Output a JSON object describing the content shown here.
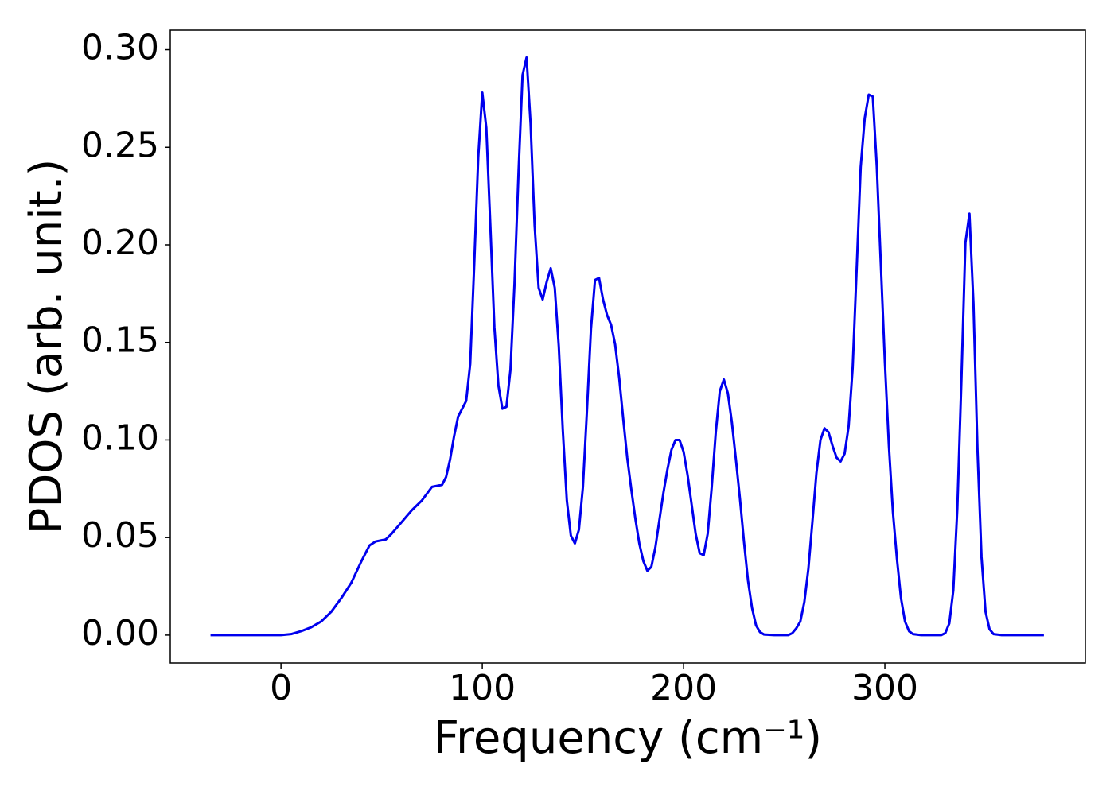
{
  "chart_data": {
    "type": "line",
    "xlabel": "Frequency (cm⁻¹)",
    "ylabel": "PDOS (arb. unit.)",
    "x": [
      -35,
      0,
      5,
      10,
      15,
      20,
      25,
      30,
      35,
      40,
      44,
      47,
      52,
      55,
      60,
      65,
      70,
      75,
      80,
      82,
      84,
      86,
      88,
      90,
      92,
      94,
      96,
      98,
      100,
      102,
      104,
      106,
      108,
      110,
      112,
      114,
      116,
      118,
      120,
      122,
      124,
      126,
      128,
      130,
      132,
      134,
      136,
      138,
      140,
      142,
      144,
      146,
      148,
      150,
      152,
      154,
      156,
      158,
      160,
      162,
      164,
      166,
      168,
      170,
      172,
      174,
      176,
      178,
      180,
      182,
      184,
      186,
      188,
      190,
      192,
      194,
      196,
      198,
      200,
      202,
      204,
      206,
      208,
      210,
      212,
      214,
      216,
      218,
      220,
      222,
      224,
      226,
      228,
      230,
      232,
      234,
      236,
      238,
      240,
      245,
      252,
      254,
      256,
      258,
      260,
      262,
      264,
      266,
      268,
      270,
      272,
      274,
      276,
      278,
      280,
      282,
      284,
      286,
      288,
      290,
      292,
      294,
      296,
      298,
      300,
      302,
      304,
      306,
      308,
      310,
      312,
      314,
      318,
      328,
      330,
      332,
      334,
      336,
      338,
      340,
      342,
      344,
      346,
      348,
      350,
      352,
      354,
      358,
      379
    ],
    "series": [
      {
        "name": "PDOS",
        "color": "#0000ee",
        "values": [
          0,
          0,
          0.0005,
          0.002,
          0.004,
          0.007,
          0.012,
          0.019,
          0.027,
          0.038,
          0.046,
          0.048,
          0.049,
          0.052,
          0.058,
          0.064,
          0.069,
          0.076,
          0.077,
          0.081,
          0.09,
          0.102,
          0.112,
          0.116,
          0.12,
          0.139,
          0.19,
          0.245,
          0.278,
          0.26,
          0.21,
          0.158,
          0.128,
          0.116,
          0.117,
          0.136,
          0.18,
          0.237,
          0.287,
          0.296,
          0.262,
          0.21,
          0.178,
          0.172,
          0.181,
          0.188,
          0.178,
          0.148,
          0.105,
          0.069,
          0.051,
          0.047,
          0.054,
          0.076,
          0.115,
          0.157,
          0.182,
          0.183,
          0.172,
          0.164,
          0.159,
          0.149,
          0.132,
          0.111,
          0.091,
          0.075,
          0.06,
          0.047,
          0.038,
          0.033,
          0.035,
          0.045,
          0.059,
          0.073,
          0.085,
          0.095,
          0.1,
          0.1,
          0.094,
          0.082,
          0.067,
          0.052,
          0.042,
          0.041,
          0.052,
          0.076,
          0.104,
          0.125,
          0.131,
          0.124,
          0.109,
          0.09,
          0.07,
          0.048,
          0.028,
          0.014,
          0.005,
          0.0015,
          0.0003,
          0,
          0,
          0.001,
          0.0035,
          0.007,
          0.017,
          0.034,
          0.058,
          0.083,
          0.1,
          0.106,
          0.104,
          0.097,
          0.091,
          0.089,
          0.093,
          0.107,
          0.137,
          0.188,
          0.24,
          0.265,
          0.277,
          0.276,
          0.24,
          0.19,
          0.14,
          0.097,
          0.063,
          0.039,
          0.019,
          0.007,
          0.002,
          0.0005,
          0,
          0,
          0.001,
          0.006,
          0.023,
          0.065,
          0.13,
          0.201,
          0.216,
          0.17,
          0.095,
          0.04,
          0.012,
          0.003,
          0.0005,
          0,
          0
        ]
      }
    ],
    "xlim": [
      -55,
      399.6
    ],
    "ylim": [
      -0.0143,
      0.31
    ],
    "xticks": [
      0,
      100,
      200,
      300
    ],
    "yticks": [
      {
        "value": 0,
        "label": "0.00"
      },
      {
        "value": 0.05,
        "label": "0.05"
      },
      {
        "value": 0.1,
        "label": "0.10"
      },
      {
        "value": 0.15,
        "label": "0.15"
      },
      {
        "value": 0.2,
        "label": "0.20"
      },
      {
        "value": 0.25,
        "label": "0.25"
      },
      {
        "value": 0.3,
        "label": "0.30"
      }
    ],
    "grid": false
  }
}
